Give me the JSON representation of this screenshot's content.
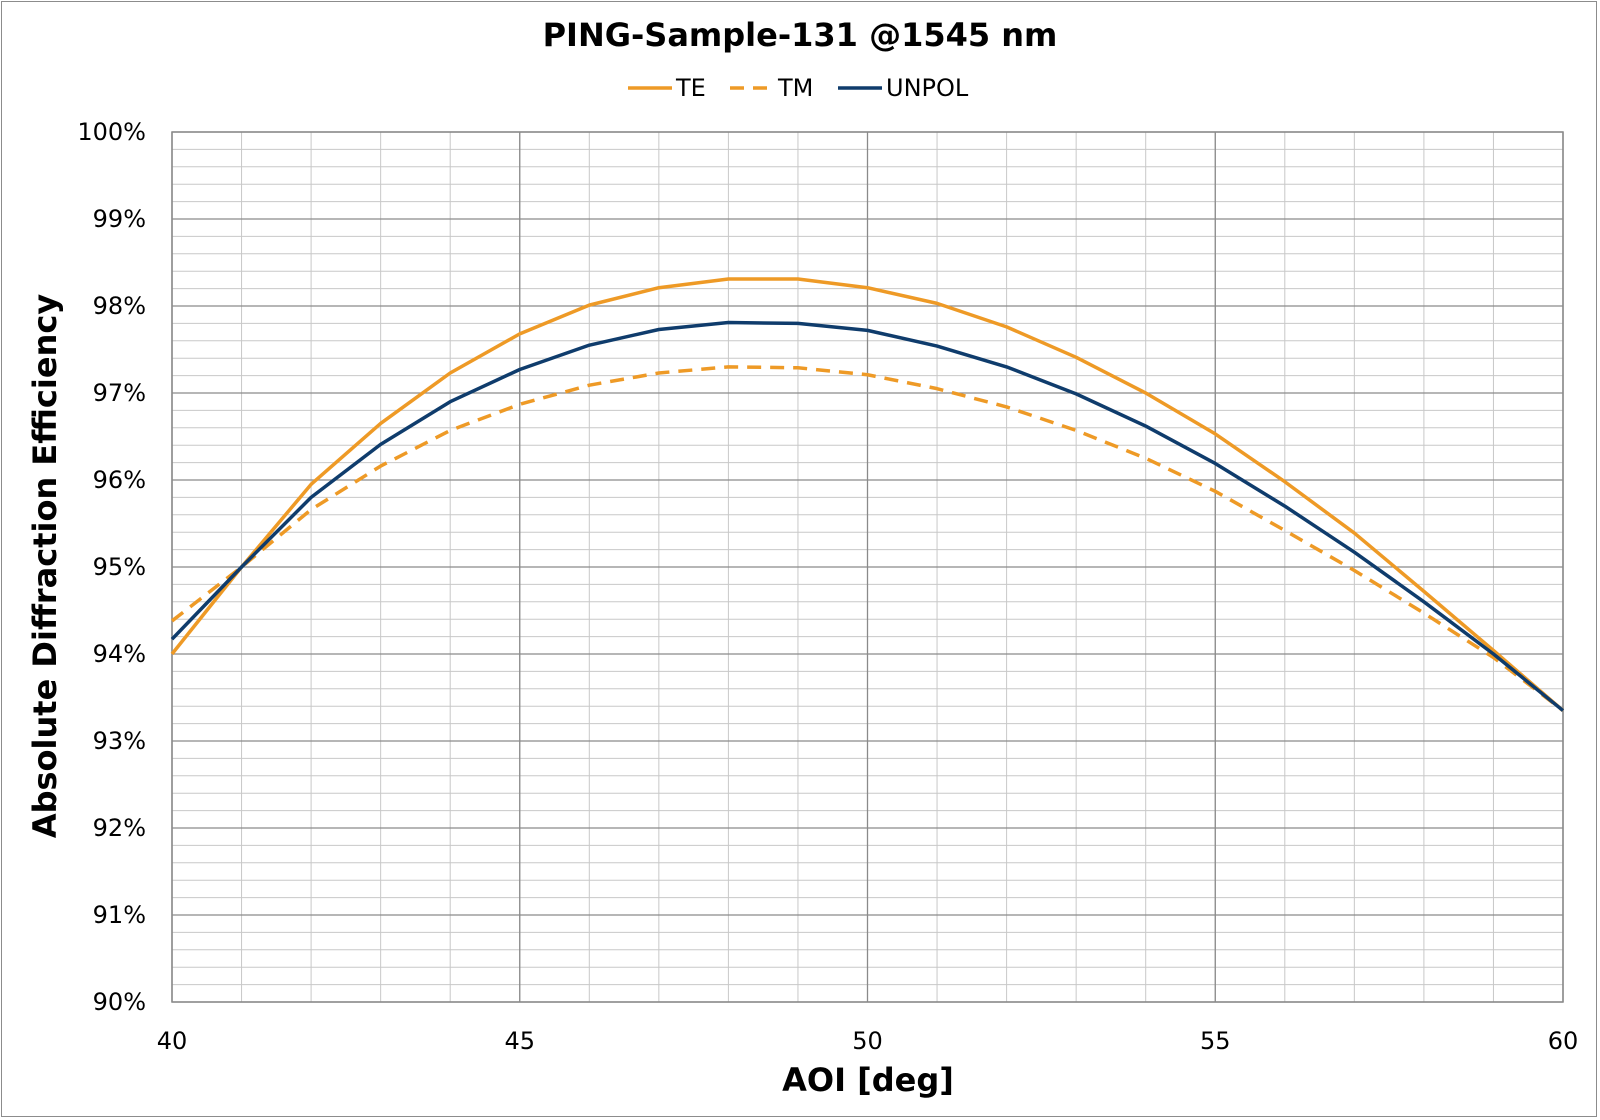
{
  "chart_data": {
    "type": "line",
    "title": "PING-Sample-131 @1545 nm",
    "xlabel": "AOI [deg]",
    "ylabel": "Absolute Diffraction Efficiency",
    "xlim": [
      40,
      60
    ],
    "ylim": [
      90,
      100
    ],
    "x_ticks": [
      "40",
      "45",
      "50",
      "55",
      "60"
    ],
    "x_tick_values": [
      40,
      45,
      50,
      55,
      60
    ],
    "y_ticks": [
      "90%",
      "91%",
      "92%",
      "93%",
      "94%",
      "95%",
      "96%",
      "97%",
      "98%",
      "99%",
      "100%"
    ],
    "y_tick_values": [
      90,
      91,
      92,
      93,
      94,
      95,
      96,
      97,
      98,
      99,
      100
    ],
    "grid": true,
    "grid_minor": {
      "x_step": 1,
      "y_step": 0.2
    },
    "legend_position": "top-center",
    "x": [
      40,
      41,
      42,
      43,
      44,
      45,
      46,
      47,
      48,
      49,
      50,
      51,
      52,
      53,
      54,
      55,
      56,
      57,
      58,
      59,
      60
    ],
    "series": [
      {
        "name": "TE",
        "color": "#EE9A26",
        "dash": "solid",
        "values": [
          94.0,
          95.0,
          95.95,
          96.65,
          97.23,
          97.68,
          98.01,
          98.21,
          98.31,
          98.31,
          98.21,
          98.03,
          97.76,
          97.41,
          97.0,
          96.53,
          95.98,
          95.39,
          94.72,
          94.04,
          93.35
        ]
      },
      {
        "name": "TM",
        "color": "#EE9A26",
        "dash": "dashed",
        "values": [
          94.38,
          95.0,
          95.66,
          96.16,
          96.57,
          96.87,
          97.09,
          97.23,
          97.3,
          97.29,
          97.21,
          97.05,
          96.84,
          96.57,
          96.25,
          95.87,
          95.42,
          94.96,
          94.47,
          93.96,
          93.35
        ]
      },
      {
        "name": "UNPOL",
        "color": "#0F3C6C",
        "dash": "solid",
        "values": [
          94.17,
          95.0,
          95.8,
          96.41,
          96.9,
          97.27,
          97.55,
          97.73,
          97.81,
          97.8,
          97.72,
          97.54,
          97.3,
          96.99,
          96.62,
          96.19,
          95.7,
          95.17,
          94.6,
          94.0,
          93.35
        ]
      }
    ]
  }
}
